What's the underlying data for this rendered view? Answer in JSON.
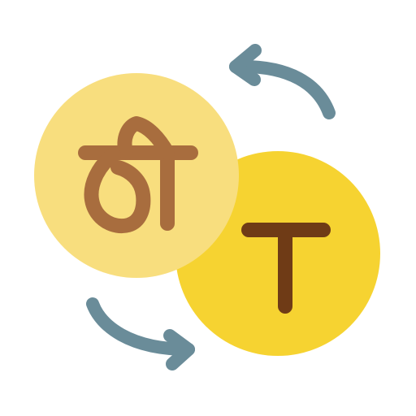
{
  "icon": {
    "semantic_name": "translate-icon",
    "colors": {
      "back_coin_fill": "#F8DE7E",
      "front_coin_fill": "#F6D331",
      "glyph_brown_light": "#A86D3E",
      "glyph_brown_dark": "#6F3B16",
      "arrow_color": "#6A8C99",
      "background": "#FFFFFF"
    },
    "elements": [
      "devanagari-letter-icon",
      "latin-letter-t-icon",
      "rotate-arrow-top-icon",
      "rotate-arrow-bottom-icon"
    ]
  }
}
